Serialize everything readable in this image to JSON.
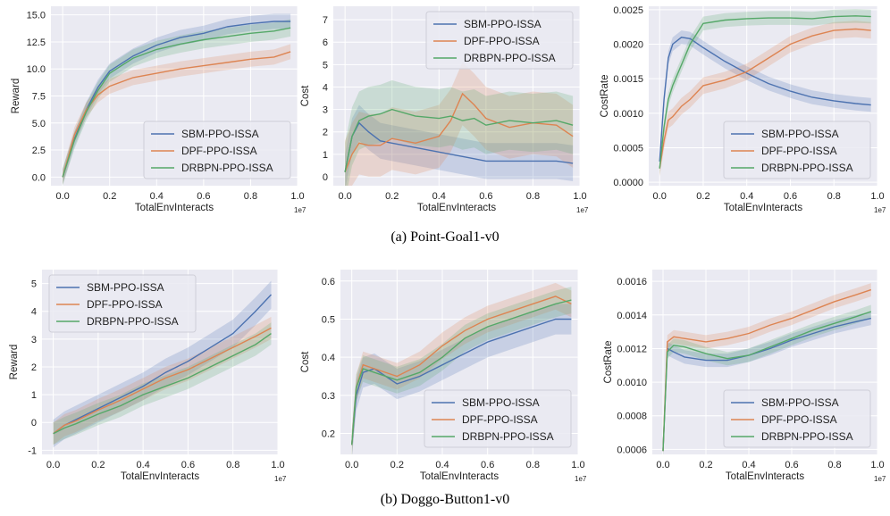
{
  "colors": {
    "panel_bg": "#eaeaf2",
    "grid": "#ffffff",
    "SBM-PPO-ISSA": "#4c72b0",
    "DPF-PPO-ISSA": "#dd8452",
    "DRBPN-PPO-ISSA": "#55a868"
  },
  "captions": {
    "a": "(a)  Point-Goal1-v0",
    "b": "(b)  Doggo-Button1-v0"
  },
  "chart_data": [
    {
      "type": "line",
      "row": 0,
      "col": 0,
      "xlabel": "TotalEnvInteracts",
      "ylabel": "Reward",
      "x_multiplier": "1e7",
      "xlim": [
        -0.05,
        1.0
      ],
      "ylim": [
        -0.8,
        15.8
      ],
      "xticks": [
        0.0,
        0.2,
        0.4,
        0.6,
        0.8,
        1.0
      ],
      "yticks": [
        0.0,
        2.5,
        5.0,
        7.5,
        10.0,
        12.5,
        15.0
      ],
      "ytick_format": 1,
      "legend_position": "lower-right",
      "x": [
        0,
        0.05,
        0.1,
        0.15,
        0.2,
        0.3,
        0.4,
        0.5,
        0.6,
        0.7,
        0.8,
        0.9,
        0.97
      ],
      "series": [
        {
          "name": "SBM-PPO-ISSA",
          "values": [
            0,
            3.5,
            6.2,
            8.3,
            9.8,
            11.2,
            12.2,
            12.9,
            13.3,
            13.9,
            14.2,
            14.4,
            14.4
          ],
          "band": 0.7
        },
        {
          "name": "DPF-PPO-ISSA",
          "values": [
            0,
            3.9,
            6.2,
            7.6,
            8.4,
            9.2,
            9.6,
            10.0,
            10.3,
            10.6,
            10.9,
            11.1,
            11.6
          ],
          "band": 0.7
        },
        {
          "name": "DRBPN-PPO-ISSA",
          "values": [
            0,
            3.4,
            6.0,
            8.0,
            9.6,
            11.0,
            11.8,
            12.3,
            12.7,
            13.0,
            13.3,
            13.5,
            13.8
          ],
          "band": 0.8
        }
      ]
    },
    {
      "type": "line",
      "row": 0,
      "col": 1,
      "xlabel": "TotalEnvInteracts",
      "ylabel": "Cost",
      "x_multiplier": "1e7",
      "xlim": [
        -0.05,
        1.0
      ],
      "ylim": [
        -0.4,
        7.6
      ],
      "xticks": [
        0.0,
        0.2,
        0.4,
        0.6,
        0.8,
        1.0
      ],
      "yticks": [
        0,
        1,
        2,
        3,
        4,
        5,
        6,
        7
      ],
      "ytick_format": 0,
      "legend_position": "upper-right",
      "x": [
        0,
        0.03,
        0.06,
        0.1,
        0.15,
        0.2,
        0.3,
        0.4,
        0.45,
        0.5,
        0.55,
        0.6,
        0.7,
        0.8,
        0.9,
        0.97
      ],
      "series": [
        {
          "name": "SBM-PPO-ISSA",
          "values": [
            0.2,
            1.8,
            2.4,
            2.0,
            1.6,
            1.5,
            1.3,
            1.1,
            1.0,
            0.9,
            0.8,
            0.7,
            0.7,
            0.7,
            0.7,
            0.6
          ],
          "band": 0.8
        },
        {
          "name": "DPF-PPO-ISSA",
          "values": [
            0.2,
            1.0,
            1.5,
            1.4,
            1.4,
            1.7,
            1.5,
            1.8,
            2.5,
            3.7,
            3.2,
            2.6,
            2.2,
            2.4,
            2.3,
            1.8
          ],
          "band": 1.4
        },
        {
          "name": "DRBPN-PPO-ISSA",
          "values": [
            0.2,
            1.8,
            2.5,
            2.7,
            2.8,
            3.0,
            2.7,
            2.6,
            2.7,
            2.5,
            2.6,
            2.3,
            2.5,
            2.4,
            2.5,
            2.3
          ],
          "band": 1.3
        }
      ]
    },
    {
      "type": "line",
      "row": 0,
      "col": 2,
      "xlabel": "TotalEnvInteracts",
      "ylabel": "CostRate",
      "x_multiplier": "1e7",
      "xlim": [
        -0.05,
        1.0
      ],
      "ylim": [
        -5e-05,
        0.00255
      ],
      "xticks": [
        0.0,
        0.2,
        0.4,
        0.6,
        0.8,
        1.0
      ],
      "yticks": [
        0.0,
        0.0005,
        0.001,
        0.0015,
        0.002,
        0.0025
      ],
      "ytick_format": 4,
      "legend_position": "lower-right",
      "x": [
        0,
        0.02,
        0.04,
        0.06,
        0.1,
        0.14,
        0.2,
        0.3,
        0.4,
        0.5,
        0.6,
        0.7,
        0.8,
        0.9,
        0.97
      ],
      "series": [
        {
          "name": "SBM-PPO-ISSA",
          "values": [
            0.0003,
            0.0012,
            0.0018,
            0.002,
            0.0021,
            0.00208,
            0.00195,
            0.00175,
            0.00158,
            0.00143,
            0.00132,
            0.00123,
            0.00118,
            0.00114,
            0.00112
          ],
          "band": 0.0001
        },
        {
          "name": "DPF-PPO-ISSA",
          "values": [
            0.0002,
            0.0006,
            0.0009,
            0.00095,
            0.0011,
            0.0012,
            0.0014,
            0.00148,
            0.0016,
            0.0018,
            0.002,
            0.00212,
            0.0022,
            0.00222,
            0.0022
          ],
          "band": 0.00012
        },
        {
          "name": "DRBPN-PPO-ISSA",
          "values": [
            0.0002,
            0.0008,
            0.0012,
            0.0014,
            0.0017,
            0.002,
            0.0023,
            0.00235,
            0.00237,
            0.00238,
            0.00238,
            0.00237,
            0.0024,
            0.00241,
            0.0024
          ],
          "band": 0.0001
        }
      ]
    },
    {
      "type": "line",
      "row": 1,
      "col": 0,
      "xlabel": "TotalEnvInteracts",
      "ylabel": "Reward",
      "x_multiplier": "1e7",
      "xlim": [
        -0.05,
        1.0
      ],
      "ylim": [
        -1.15,
        5.5
      ],
      "xticks": [
        0.0,
        0.2,
        0.4,
        0.6,
        0.8,
        1.0
      ],
      "yticks": [
        -1,
        0,
        1,
        2,
        3,
        4,
        5
      ],
      "ytick_format": 0,
      "legend_position": "upper-left",
      "x": [
        0,
        0.05,
        0.1,
        0.2,
        0.3,
        0.4,
        0.5,
        0.6,
        0.7,
        0.8,
        0.9,
        0.97
      ],
      "series": [
        {
          "name": "SBM-PPO-ISSA",
          "values": [
            -0.4,
            -0.1,
            0.1,
            0.5,
            0.9,
            1.3,
            1.8,
            2.2,
            2.7,
            3.2,
            4.0,
            4.6
          ],
          "band": 0.5
        },
        {
          "name": "DPF-PPO-ISSA",
          "values": [
            -0.4,
            -0.1,
            0.05,
            0.45,
            0.8,
            1.2,
            1.6,
            1.9,
            2.3,
            2.7,
            3.1,
            3.4
          ],
          "band": 0.4
        },
        {
          "name": "DRBPN-PPO-ISSA",
          "values": [
            -0.4,
            -0.2,
            -0.05,
            0.3,
            0.6,
            1.0,
            1.3,
            1.6,
            2.0,
            2.4,
            2.8,
            3.2
          ],
          "band": 0.4
        }
      ]
    },
    {
      "type": "line",
      "row": 1,
      "col": 1,
      "xlabel": "TotalEnvInteracts",
      "ylabel": "Cost",
      "x_multiplier": "1e7",
      "xlim": [
        -0.05,
        1.0
      ],
      "ylim": [
        0.145,
        0.63
      ],
      "xticks": [
        0.0,
        0.2,
        0.4,
        0.6,
        0.8,
        1.0
      ],
      "yticks": [
        0.2,
        0.3,
        0.4,
        0.5,
        0.6
      ],
      "ytick_format": 1,
      "legend_position": "lower-right",
      "x": [
        0,
        0.02,
        0.05,
        0.1,
        0.2,
        0.3,
        0.4,
        0.5,
        0.6,
        0.7,
        0.8,
        0.9,
        0.97
      ],
      "series": [
        {
          "name": "SBM-PPO-ISSA",
          "values": [
            0.17,
            0.3,
            0.36,
            0.37,
            0.33,
            0.35,
            0.38,
            0.41,
            0.44,
            0.46,
            0.48,
            0.5,
            0.5
          ],
          "band": 0.04
        },
        {
          "name": "DPF-PPO-ISSA",
          "values": [
            0.17,
            0.32,
            0.38,
            0.37,
            0.35,
            0.38,
            0.43,
            0.47,
            0.5,
            0.52,
            0.54,
            0.56,
            0.54
          ],
          "band": 0.035
        },
        {
          "name": "DRBPN-PPO-ISSA",
          "values": [
            0.17,
            0.32,
            0.37,
            0.36,
            0.34,
            0.36,
            0.4,
            0.45,
            0.48,
            0.5,
            0.52,
            0.54,
            0.55
          ],
          "band": 0.035
        }
      ]
    },
    {
      "type": "line",
      "row": 1,
      "col": 2,
      "xlabel": "TotalEnvInteracts",
      "ylabel": "CostRate",
      "x_multiplier": "1e7",
      "xlim": [
        -0.05,
        1.0
      ],
      "ylim": [
        0.00057,
        0.00167
      ],
      "xticks": [
        0.0,
        0.2,
        0.4,
        0.6,
        0.8,
        1.0
      ],
      "yticks": [
        0.0006,
        0.0008,
        0.001,
        0.0012,
        0.0014,
        0.0016
      ],
      "ytick_format": 4,
      "legend_position": "lower-right",
      "x": [
        0,
        0.02,
        0.05,
        0.1,
        0.2,
        0.3,
        0.4,
        0.5,
        0.6,
        0.7,
        0.8,
        0.9,
        0.97
      ],
      "series": [
        {
          "name": "SBM-PPO-ISSA",
          "values": [
            0.00059,
            0.0012,
            0.00118,
            0.00115,
            0.00113,
            0.00113,
            0.00116,
            0.0012,
            0.00125,
            0.00129,
            0.00133,
            0.00136,
            0.00138
          ],
          "band": 4e-05
        },
        {
          "name": "DPF-PPO-ISSA",
          "values": [
            0.00059,
            0.00124,
            0.00127,
            0.00126,
            0.00124,
            0.00126,
            0.00129,
            0.00134,
            0.00138,
            0.00143,
            0.00148,
            0.00152,
            0.00155
          ],
          "band": 4e-05
        },
        {
          "name": "DRBPN-PPO-ISSA",
          "values": [
            0.00059,
            0.00118,
            0.00122,
            0.00121,
            0.00117,
            0.00114,
            0.00116,
            0.00121,
            0.00126,
            0.00131,
            0.00135,
            0.00139,
            0.00142
          ],
          "band": 4e-05
        }
      ]
    }
  ]
}
